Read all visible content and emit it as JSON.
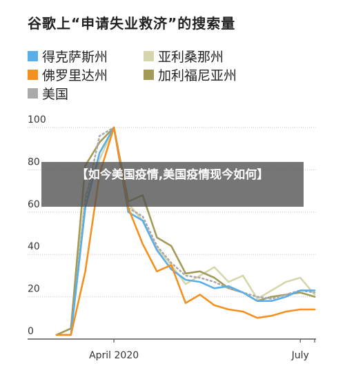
{
  "overlay_text": "【如今美国疫情,美国疫情现今如何】",
  "chart_data": {
    "type": "line",
    "title": "谷歌上“申请失业救济”的搜索量",
    "xlabel": "",
    "ylabel": "",
    "ylim": [
      0,
      100
    ],
    "yticks": [
      0,
      20,
      40,
      60,
      80,
      100
    ],
    "xtick_labels": [
      "April 2020",
      "July"
    ],
    "x_weeks": [
      0,
      1,
      2,
      3,
      4,
      5,
      6,
      7,
      8,
      9,
      10,
      11,
      12,
      13,
      14,
      15,
      16,
      17,
      18
    ],
    "legend_placement": "top",
    "grid": true,
    "series": [
      {
        "name": "得克萨斯州",
        "color": "#5aaee8",
        "style": "solid",
        "values": [
          2,
          2,
          62,
          88,
          100,
          60,
          56,
          42,
          33,
          28,
          27,
          24,
          25,
          22,
          18,
          18,
          20,
          23,
          23
        ]
      },
      {
        "name": "佛罗里达州",
        "color": "#f5901e",
        "style": "solid",
        "values": [
          2,
          2,
          32,
          78,
          100,
          62,
          45,
          32,
          35,
          17,
          21,
          16,
          14,
          13,
          10,
          11,
          13,
          14,
          14
        ]
      },
      {
        "name": "美国",
        "color": "#aaaaaa",
        "style": "dotted",
        "values": [
          2,
          2,
          65,
          96,
          100,
          62,
          58,
          44,
          36,
          30,
          29,
          27,
          24,
          22,
          20,
          19,
          21,
          23,
          22
        ]
      },
      {
        "name": "亚利桑那州",
        "color": "#d6d6ac",
        "style": "solid",
        "values": [
          2,
          5,
          68,
          85,
          100,
          64,
          56,
          43,
          35,
          26,
          30,
          34,
          27,
          30,
          19,
          23,
          27,
          29,
          21
        ]
      },
      {
        "name": "加利福尼亚州",
        "color": "#a49a58",
        "style": "solid",
        "values": [
          2,
          5,
          82,
          93,
          100,
          65,
          68,
          48,
          44,
          31,
          32,
          29,
          24,
          22,
          18,
          20,
          21,
          22,
          20
        ]
      }
    ]
  }
}
